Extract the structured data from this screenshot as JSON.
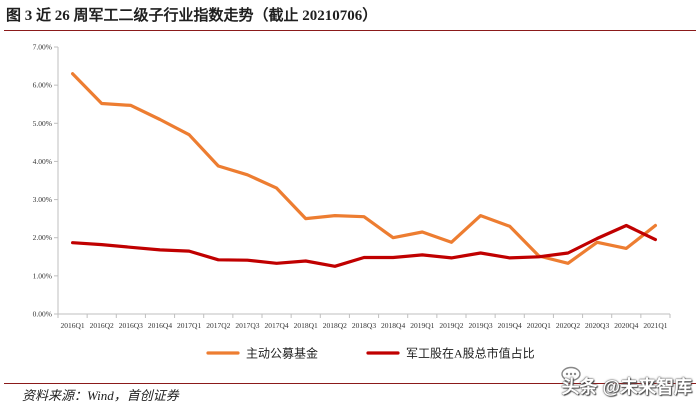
{
  "title": "图 3  近 26 周军工二级子行业指数走势（截止 20210706）",
  "source": "资料来源：Wind，首创证券",
  "watermark": "头条 @未来智库",
  "colors": {
    "series_a": "#ed7d31",
    "series_b": "#c00000",
    "axis": "#bfbfbf",
    "rule": "#8b1a1a"
  },
  "chart_data": {
    "type": "line",
    "categories": [
      "2016Q1",
      "2016Q2",
      "2016Q3",
      "2016Q4",
      "2017Q1",
      "2017Q2",
      "2017Q3",
      "2017Q4",
      "2018Q1",
      "2018Q2",
      "2018Q3",
      "2018Q4",
      "2019Q1",
      "2019Q2",
      "2019Q3",
      "2019Q4",
      "2020Q1",
      "2020Q2",
      "2020Q3",
      "2020Q4",
      "2021Q1"
    ],
    "ylim": [
      0,
      7
    ],
    "yticks": [
      "0.00%",
      "1.00%",
      "2.00%",
      "3.00%",
      "4.00%",
      "5.00%",
      "6.00%",
      "7.00%"
    ],
    "grid": false,
    "legend": "bottom",
    "series": [
      {
        "name": "主动公募基金",
        "color": "#ed7d31",
        "values": [
          6.3,
          5.52,
          5.47,
          5.1,
          4.7,
          3.88,
          3.65,
          3.3,
          2.5,
          2.58,
          2.55,
          2.0,
          2.15,
          1.88,
          2.58,
          2.3,
          1.52,
          1.33,
          1.88,
          1.72,
          2.32
        ]
      },
      {
        "name": "军工股在A股总市值占比",
        "color": "#c00000",
        "values": [
          1.87,
          1.82,
          1.75,
          1.68,
          1.65,
          1.42,
          1.41,
          1.33,
          1.39,
          1.25,
          1.48,
          1.48,
          1.55,
          1.47,
          1.6,
          1.47,
          1.5,
          1.6,
          1.98,
          2.32,
          1.95
        ]
      }
    ]
  }
}
